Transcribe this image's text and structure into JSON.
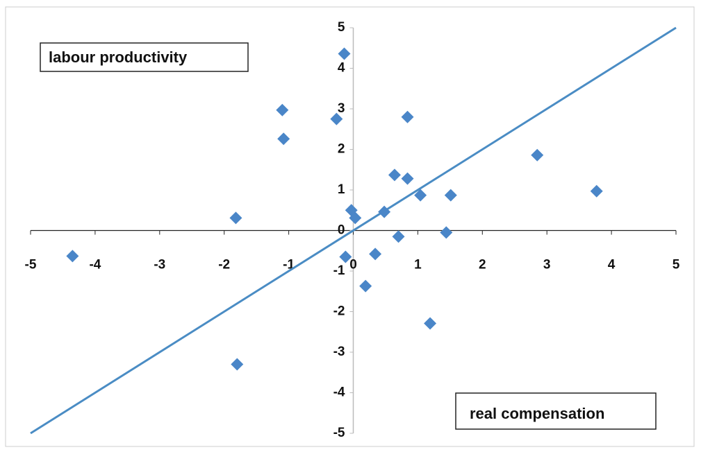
{
  "chart_data": {
    "type": "scatter",
    "x": [
      -4.35,
      -0.14,
      -1.1,
      -0.26,
      -1.08,
      0.84,
      2.85,
      0.64,
      0.84,
      3.77,
      1.04,
      1.51,
      -1.82,
      -0.03,
      0.03,
      0.48,
      0.7,
      1.44,
      0.34,
      -0.12,
      0.19,
      1.19,
      -1.8
    ],
    "values": [
      -0.63,
      4.36,
      2.97,
      2.75,
      2.26,
      2.8,
      1.86,
      1.37,
      1.28,
      0.97,
      0.87,
      0.87,
      0.31,
      0.5,
      0.31,
      0.46,
      -0.15,
      -0.05,
      -0.58,
      -0.65,
      -1.37,
      -2.29,
      -3.3
    ],
    "color": "#4a86c8",
    "reference_line": {
      "x": [
        -5,
        5
      ],
      "y": [
        -5,
        5
      ],
      "color": "#4a8cc4"
    },
    "xlim": [
      -5,
      5
    ],
    "ylim": [
      -5,
      5
    ],
    "xticks": [
      -5,
      -4,
      -3,
      -2,
      -1,
      0,
      1,
      2,
      3,
      4,
      5
    ],
    "yticks": [
      -5,
      -4,
      -3,
      -2,
      -1,
      0,
      1,
      2,
      3,
      4,
      5
    ],
    "annotations": [
      "labour productivity",
      "real compensation"
    ]
  }
}
